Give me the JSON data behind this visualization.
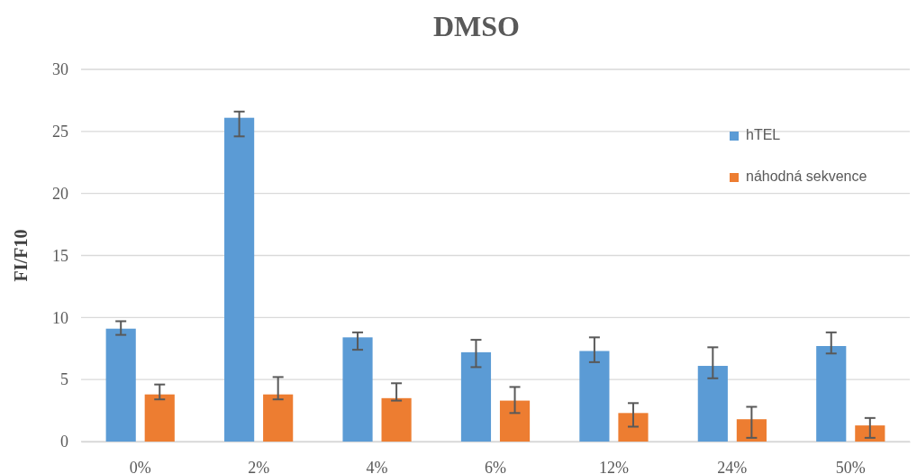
{
  "chart_data": {
    "type": "bar",
    "title": "DMSO",
    "ylabel": "FI/F10",
    "categories": [
      "0%",
      "2%",
      "4%",
      "6%",
      "12%",
      "24%",
      "50%"
    ],
    "series": [
      {
        "name": "hTEL",
        "color": "#5b9bd5",
        "values": [
          9.1,
          26.1,
          8.4,
          7.2,
          7.3,
          6.1,
          7.7
        ],
        "errors": [
          [
            8.6,
            9.7
          ],
          [
            24.6,
            26.6
          ],
          [
            7.4,
            8.8
          ],
          [
            6.0,
            8.2
          ],
          [
            6.4,
            8.4
          ],
          [
            5.1,
            7.6
          ],
          [
            7.1,
            8.8
          ]
        ]
      },
      {
        "name": "náhodná sekvence",
        "color": "#ed7d31",
        "values": [
          3.8,
          3.8,
          3.5,
          3.3,
          2.3,
          1.8,
          1.3
        ],
        "errors": [
          [
            3.4,
            4.6
          ],
          [
            3.4,
            5.2
          ],
          [
            3.3,
            4.7
          ],
          [
            2.3,
            4.4
          ],
          [
            1.2,
            3.1
          ],
          [
            0.3,
            2.8
          ],
          [
            0.3,
            1.9
          ]
        ]
      }
    ],
    "ylim": [
      0,
      30
    ],
    "yticks": [
      0,
      5,
      10,
      15,
      20,
      25,
      30
    ],
    "grid": "y",
    "legend": "top right"
  }
}
